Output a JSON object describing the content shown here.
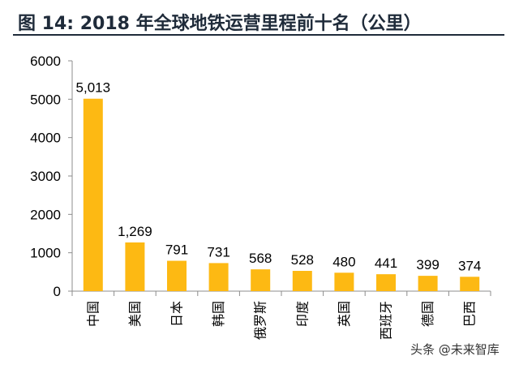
{
  "title": "图 14:  2018 年全球地铁运营里程前十名（公里）",
  "watermark": "头条 @未来智库",
  "colors": {
    "bar": "#FDB913",
    "axis": "#8c8c8c",
    "title": "#1f2b3a"
  },
  "chart_data": {
    "type": "bar",
    "title": "图 14:  2018 年全球地铁运营里程前十名（公里）",
    "categories": [
      "中国",
      "美国",
      "日本",
      "韩国",
      "俄罗斯",
      "印度",
      "英国",
      "西班牙",
      "德国",
      "巴西"
    ],
    "values": [
      5013,
      1269,
      791,
      731,
      568,
      528,
      480,
      441,
      399,
      374
    ],
    "data_labels": [
      "5,013",
      "1,269",
      "791",
      "731",
      "568",
      "528",
      "480",
      "441",
      "399",
      "374"
    ],
    "yticks": [
      0,
      1000,
      2000,
      3000,
      4000,
      5000,
      6000
    ],
    "ylim": [
      0,
      6000
    ],
    "xlabel": "",
    "ylabel": "",
    "grid": false,
    "legend": "none"
  }
}
